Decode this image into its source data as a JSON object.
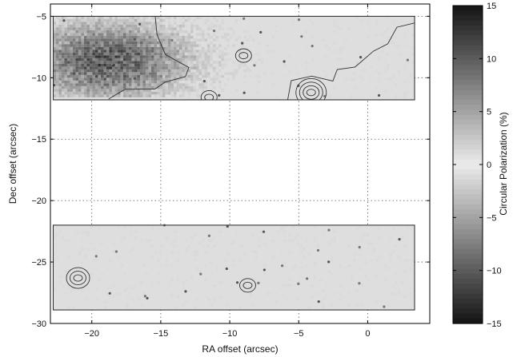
{
  "chart_data": {
    "type": "heatmap",
    "title": "",
    "xlabel": "RA offset (arcsec)",
    "ylabel": "Dec offset (arcsec)",
    "xlim": [
      -23,
      4.5
    ],
    "ylim": [
      -30,
      -4
    ],
    "xticks": [
      -20,
      -15,
      -10,
      -5,
      0
    ],
    "yticks": [
      -5,
      -10,
      -15,
      -20,
      -25,
      -30
    ],
    "xtick_labels": [
      "−20",
      "−15",
      "−10",
      "−5",
      "0"
    ],
    "ytick_labels": [
      "−5",
      "−10",
      "−15",
      "−20",
      "−25",
      "−30"
    ],
    "grid": true,
    "grid_style": "dotted",
    "colormap": "grayscale",
    "panels": [
      {
        "name": "upper",
        "ra_range": [
          -22.8,
          3.4
        ],
        "dec_range": [
          -11.8,
          -5.0
        ]
      },
      {
        "name": "lower",
        "ra_range": [
          -22.8,
          3.4
        ],
        "dec_range": [
          -28.9,
          -22.0
        ]
      }
    ],
    "features": [
      {
        "kind": "negative-region",
        "ra": -19.0,
        "dec": -8.5,
        "value": -10
      },
      {
        "kind": "contour-source",
        "ra": -4.1,
        "dec": -11.2,
        "rings": 4
      },
      {
        "kind": "contour-source",
        "ra": -9.0,
        "dec": -8.2,
        "rings": 2
      },
      {
        "kind": "contour-source",
        "ra": -11.5,
        "dec": -11.6,
        "rings": 2
      },
      {
        "kind": "contour-source",
        "ra": -21.0,
        "dec": -26.3,
        "rings": 3
      },
      {
        "kind": "contour-source",
        "ra": -8.7,
        "dec": -26.9,
        "rings": 2
      }
    ],
    "colorbar": {
      "label": "Circular Polarization (%)",
      "range": [
        -15,
        15
      ],
      "ticks": [
        15,
        10,
        5,
        0,
        -5,
        -10,
        -15
      ],
      "tick_labels": [
        "15",
        "10",
        "5",
        "0",
        "−5",
        "−10",
        "−15"
      ]
    }
  }
}
